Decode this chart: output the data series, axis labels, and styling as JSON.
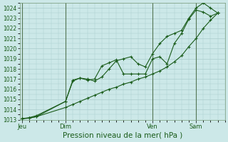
{
  "xlabel": "Pression niveau de la mer( hPa )",
  "bg_color": "#cce8e8",
  "grid_color": "#aacccc",
  "line_color": "#1a5c1a",
  "ylim": [
    1013,
    1024.5
  ],
  "yticks": [
    1013,
    1014,
    1015,
    1016,
    1017,
    1018,
    1019,
    1020,
    1021,
    1022,
    1023,
    1024
  ],
  "xtick_labels": [
    "Jeu",
    "Dim",
    "Ven",
    "Sam"
  ],
  "xtick_positions": [
    0,
    18,
    54,
    72
  ],
  "vlines": [
    0,
    18,
    54,
    72
  ],
  "xlim": [
    -1,
    84
  ],
  "line1_x": [
    0,
    3,
    6,
    18,
    21,
    24,
    27,
    30,
    33,
    36,
    39,
    42,
    45,
    48,
    51,
    54,
    57,
    60,
    63,
    66,
    69,
    72,
    75,
    78,
    81
  ],
  "line1_y": [
    1013.1,
    1013.2,
    1013.4,
    1014.8,
    1016.8,
    1017.1,
    1016.9,
    1017.0,
    1018.3,
    1018.6,
    1018.9,
    1017.5,
    1017.5,
    1017.5,
    1017.5,
    1019.0,
    1019.2,
    1018.5,
    1020.5,
    1021.5,
    1022.9,
    1023.8,
    1023.6,
    1023.2,
    1023.5
  ],
  "line2_x": [
    0,
    3,
    6,
    18,
    21,
    24,
    27,
    30,
    33,
    36,
    39,
    42,
    45,
    48,
    51,
    54,
    57,
    60,
    63,
    66,
    69,
    72,
    75,
    78,
    81
  ],
  "line2_y": [
    1013.1,
    1013.15,
    1013.3,
    1014.2,
    1014.5,
    1014.8,
    1015.1,
    1015.4,
    1015.7,
    1016.0,
    1016.2,
    1016.5,
    1016.7,
    1017.0,
    1017.2,
    1017.5,
    1017.8,
    1018.2,
    1018.7,
    1019.3,
    1020.2,
    1021.0,
    1022.0,
    1022.8,
    1023.5
  ],
  "line3_x": [
    0,
    3,
    6,
    18,
    21,
    24,
    27,
    30,
    33,
    36,
    39,
    42,
    45,
    48,
    51,
    54,
    57,
    60,
    63,
    66,
    69,
    72,
    75,
    78,
    81
  ],
  "line3_y": [
    1013.1,
    1013.15,
    1013.3,
    1014.8,
    1016.9,
    1017.1,
    1017.0,
    1016.8,
    1017.2,
    1018.0,
    1018.8,
    1019.0,
    1019.2,
    1018.5,
    1018.2,
    1019.5,
    1020.5,
    1021.2,
    1021.5,
    1021.8,
    1023.0,
    1024.0,
    1024.5,
    1024.0,
    1023.5
  ]
}
